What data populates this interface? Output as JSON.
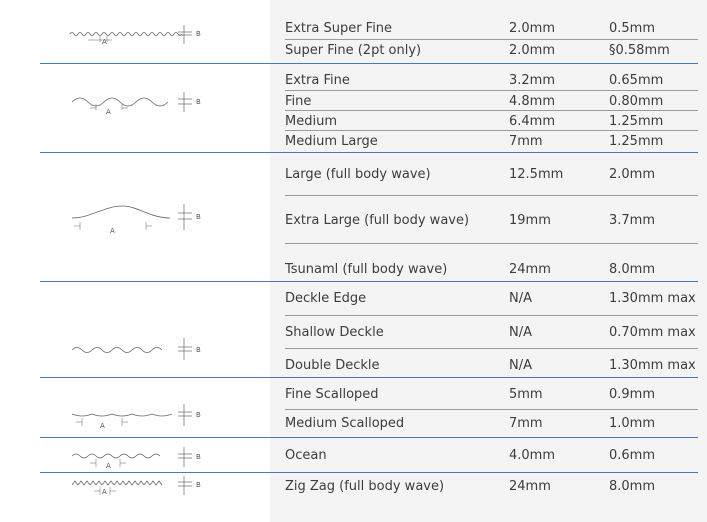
{
  "rows": [
    {
      "name": "Extra Super Fine",
      "a": "2.0mm",
      "b": "0.5mm"
    },
    {
      "name": "Super Fine (2pt only)",
      "a": "2.0mm",
      "b": "§0.58mm"
    },
    {
      "name": "Extra Fine",
      "a": "3.2mm",
      "b": "0.65mm"
    },
    {
      "name": "Fine",
      "a": "4.8mm",
      "b": "0.80mm"
    },
    {
      "name": "Medium",
      "a": "6.4mm",
      "b": "1.25mm"
    },
    {
      "name": "Medium Large",
      "a": "7mm",
      "b": "1.25mm"
    },
    {
      "name": "Large (full body wave)",
      "a": "12.5mm",
      "b": "2.0mm"
    },
    {
      "name": "Extra Large (full body wave)",
      "a": "19mm",
      "b": "3.7mm"
    },
    {
      "name": "Tsunaml (full body wave)",
      "a": "24mm",
      "b": "8.0mm"
    },
    {
      "name": "Deckle Edge",
      "a": "N/A",
      "b": "1.30mm max"
    },
    {
      "name": "Shallow Deckle",
      "a": "N/A",
      "b": "0.70mm max"
    },
    {
      "name": "Double Deckle",
      "a": "N/A",
      "b": "1.30mm max"
    },
    {
      "name": "Fine Scalloped",
      "a": "5mm",
      "b": "0.9mm"
    },
    {
      "name": "Medium Scalloped",
      "a": "7mm",
      "b": "1.0mm"
    },
    {
      "name": "Ocean",
      "a": "4.0mm",
      "b": "0.6mm"
    },
    {
      "name": "Zig Zag (full body wave)",
      "a": "24mm",
      "b": "8.0mm"
    }
  ],
  "diagram_labels": {
    "a": "A",
    "b": "B"
  },
  "colors": {
    "group_divider": "#4a78b8",
    "row_divider": "#9a9a9a",
    "panel": "#ffffff",
    "background": "#f4f4f4"
  }
}
